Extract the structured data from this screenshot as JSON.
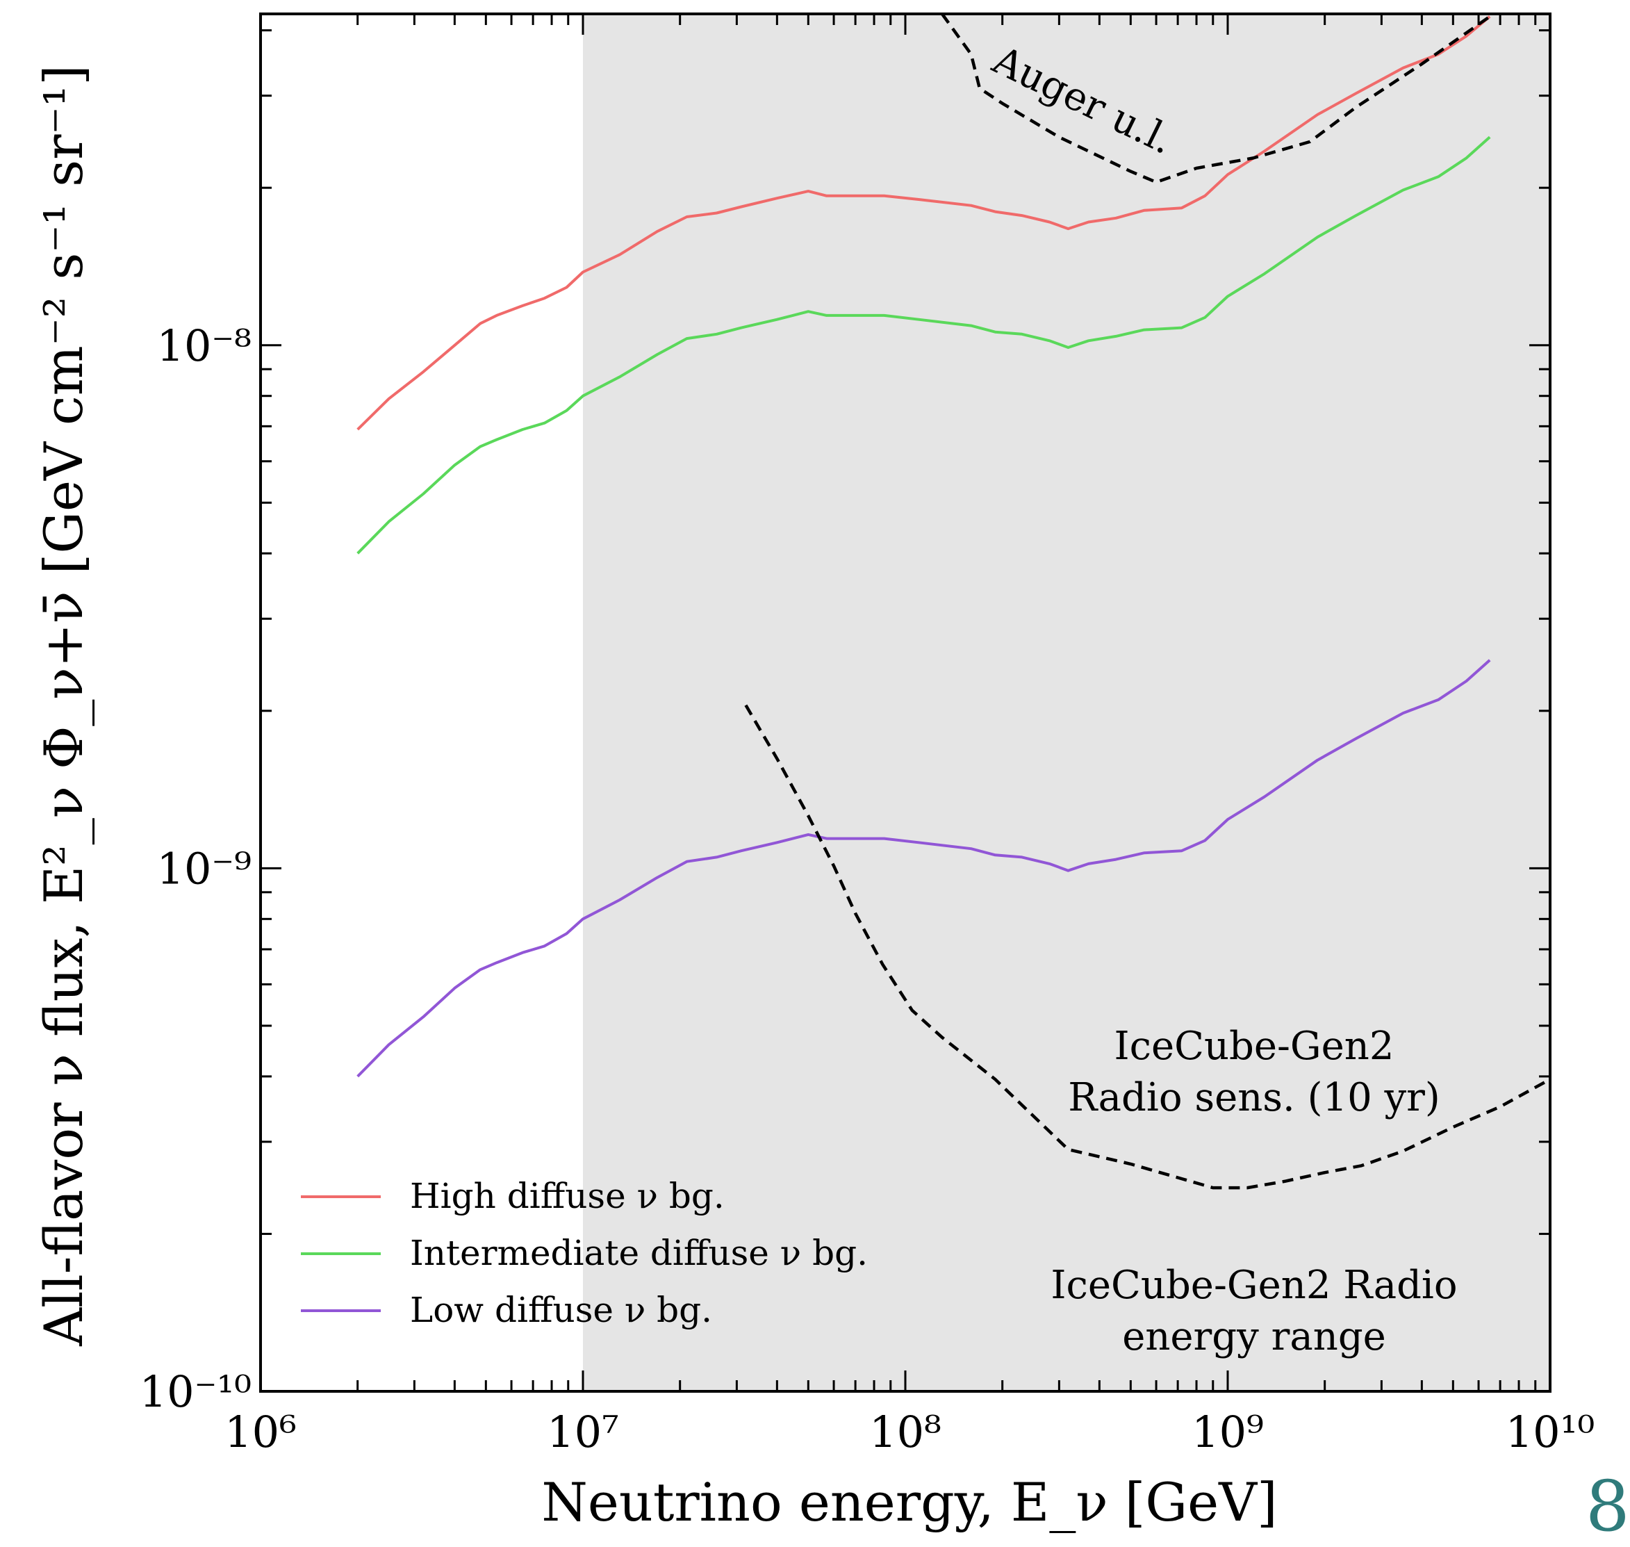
{
  "page_number": "8",
  "chart_data": {
    "type": "line",
    "xscale": "log",
    "yscale": "log",
    "xlim": [
      1000000.0,
      10000000000.0
    ],
    "ylim": [
      1e-10,
      4.3e-08
    ],
    "grid": false,
    "legend_position": "bottom-left",
    "xlabel": "Neutrino energy, E_ν [GeV]",
    "ylabel": "All-flavor ν flux, E²_ν Φ_ν+ν̄ [GeV cm⁻² s⁻¹ sr⁻¹]",
    "x_tick_labels": [
      "10⁶",
      "10⁷",
      "10⁸",
      "10⁹",
      "10¹⁰"
    ],
    "y_tick_labels": [
      "10⁻¹⁰",
      "10⁻⁹",
      "10⁻⁸"
    ],
    "shaded_region": {
      "x": [
        10000000.0,
        10000000000.0
      ],
      "color": "#e5e5e5",
      "label_line1": "IceCube-Gen2 Radio",
      "label_line2": "energy range"
    },
    "series": [
      {
        "name": "High diffuse ν bg.",
        "color": "#f06a6a",
        "style": "solid",
        "x": [
          2000000.0,
          2500000.0,
          3200000.0,
          4000000.0,
          4800000.0,
          5400000.0,
          6500000.0,
          7600000.0,
          8900000.0,
          10000000.0,
          13000000.0,
          17000000.0,
          21000000.0,
          26000000.0,
          31000000.0,
          40000000.0,
          50000000.0,
          57000000.0,
          67000000.0,
          86000000.0,
          110000000.0,
          160000000.0,
          190000000.0,
          230000000.0,
          280000000.0,
          320000000.0,
          370000000.0,
          450000000.0,
          550000000.0,
          720000000.0,
          850000000.0,
          1000000000.0,
          1300000000.0,
          1900000000.0,
          2500000000.0,
          3500000000.0,
          4500000000.0,
          5500000000.0,
          6500000000.0
        ],
        "y": [
          6.9e-09,
          7.9e-09,
          8.9e-09,
          1e-08,
          1.1e-08,
          1.14e-08,
          1.19e-08,
          1.23e-08,
          1.29e-08,
          1.38e-08,
          1.49e-08,
          1.65e-08,
          1.76e-08,
          1.79e-08,
          1.84e-08,
          1.91e-08,
          1.97e-08,
          1.93e-08,
          1.93e-08,
          1.93e-08,
          1.9e-08,
          1.85e-08,
          1.8e-08,
          1.77e-08,
          1.72e-08,
          1.67e-08,
          1.72e-08,
          1.75e-08,
          1.81e-08,
          1.83e-08,
          1.93e-08,
          2.12e-08,
          2.35e-08,
          2.76e-08,
          3.03e-08,
          3.39e-08,
          3.6e-08,
          3.9e-08,
          4.25e-08
        ]
      },
      {
        "name": "Intermediate diffuse ν bg.",
        "color": "#5ad85a",
        "style": "solid",
        "x": [
          2000000.0,
          2500000.0,
          3200000.0,
          4000000.0,
          4800000.0,
          5400000.0,
          6500000.0,
          7600000.0,
          8900000.0,
          10000000.0,
          13000000.0,
          17000000.0,
          21000000.0,
          26000000.0,
          31000000.0,
          40000000.0,
          50000000.0,
          57000000.0,
          67000000.0,
          86000000.0,
          110000000.0,
          160000000.0,
          190000000.0,
          230000000.0,
          280000000.0,
          320000000.0,
          370000000.0,
          450000000.0,
          550000000.0,
          720000000.0,
          850000000.0,
          1000000000.0,
          1300000000.0,
          1900000000.0,
          2500000000.0,
          3500000000.0,
          4500000000.0,
          5500000000.0,
          6500000000.0
        ],
        "y": [
          4e-09,
          4.6e-09,
          5.2e-09,
          5.9e-09,
          6.4e-09,
          6.6e-09,
          6.9e-09,
          7.1e-09,
          7.5e-09,
          8e-09,
          8.7e-09,
          9.6e-09,
          1.03e-08,
          1.05e-08,
          1.08e-08,
          1.12e-08,
          1.16e-08,
          1.14e-08,
          1.14e-08,
          1.14e-08,
          1.12e-08,
          1.09e-08,
          1.06e-08,
          1.05e-08,
          1.02e-08,
          9.9e-09,
          1.02e-08,
          1.04e-08,
          1.07e-08,
          1.08e-08,
          1.13e-08,
          1.24e-08,
          1.37e-08,
          1.61e-08,
          1.77e-08,
          1.98e-08,
          2.1e-08,
          2.28e-08,
          2.5e-08
        ]
      },
      {
        "name": "Low diffuse ν bg.",
        "color": "#9156d6",
        "style": "solid",
        "x": [
          2000000.0,
          2500000.0,
          3200000.0,
          4000000.0,
          4800000.0,
          5400000.0,
          6500000.0,
          7600000.0,
          8900000.0,
          10000000.0,
          13000000.0,
          17000000.0,
          21000000.0,
          26000000.0,
          31000000.0,
          40000000.0,
          50000000.0,
          57000000.0,
          67000000.0,
          86000000.0,
          110000000.0,
          160000000.0,
          190000000.0,
          230000000.0,
          280000000.0,
          320000000.0,
          370000000.0,
          450000000.0,
          550000000.0,
          720000000.0,
          850000000.0,
          1000000000.0,
          1300000000.0,
          1900000000.0,
          2500000000.0,
          3500000000.0,
          4500000000.0,
          5500000000.0,
          6500000000.0
        ],
        "y": [
          4e-10,
          4.6e-10,
          5.2e-10,
          5.9e-10,
          6.4e-10,
          6.6e-10,
          6.9e-10,
          7.1e-10,
          7.5e-10,
          8e-10,
          8.7e-10,
          9.6e-10,
          1.03e-09,
          1.05e-09,
          1.08e-09,
          1.12e-09,
          1.16e-09,
          1.14e-09,
          1.14e-09,
          1.14e-09,
          1.12e-09,
          1.09e-09,
          1.06e-09,
          1.05e-09,
          1.02e-09,
          9.9e-10,
          1.02e-09,
          1.04e-09,
          1.07e-09,
          1.08e-09,
          1.13e-09,
          1.24e-09,
          1.37e-09,
          1.61e-09,
          1.77e-09,
          1.98e-09,
          2.1e-09,
          2.28e-09,
          2.5e-09
        ]
      },
      {
        "name": "Auger u.l.",
        "color": "#000000",
        "style": "dashed",
        "x": [
          130000000.0,
          160000000.0,
          170000000.0,
          200000000.0,
          300000000.0,
          500000000.0,
          600000000.0,
          800000000.0,
          1200000000.0,
          1800000000.0,
          2500000000.0,
          4000000000.0,
          6500000000.0
        ],
        "y": [
          4.3e-08,
          3.6e-08,
          3.1e-08,
          2.9e-08,
          2.5e-08,
          2.15e-08,
          2.05e-08,
          2.18e-08,
          2.28e-08,
          2.45e-08,
          2.85e-08,
          3.45e-08,
          4.25e-08
        ]
      },
      {
        "name": "IceCube-Gen2 Radio sens. (10 yr)",
        "color": "#000000",
        "style": "dashed",
        "x": [
          32000000.0,
          40000000.0,
          50000000.0,
          60000000.0,
          70000000.0,
          85000000.0,
          105000000.0,
          130000000.0,
          190000000.0,
          320000000.0,
          500000000.0,
          900000000.0,
          1150000000.0,
          1500000000.0,
          2000000000.0,
          2600000000.0,
          3500000000.0,
          5000000000.0,
          7000000000.0,
          10000000000.0
        ],
        "y": [
          2.05e-09,
          1.62e-09,
          1.26e-09,
          1.01e-09,
          8.2e-10,
          6.55e-10,
          5.35e-10,
          4.75e-10,
          3.95e-10,
          2.9e-10,
          2.72e-10,
          2.45e-10,
          2.45e-10,
          2.52e-10,
          2.62e-10,
          2.7e-10,
          2.88e-10,
          3.2e-10,
          3.5e-10,
          3.95e-10
        ]
      }
    ],
    "legend": [
      "High diffuse ν bg.",
      "Intermediate diffuse ν bg.",
      "Low diffuse ν bg."
    ],
    "annotations": {
      "auger": "Auger u.l.",
      "gen2_line1": "IceCube-Gen2",
      "gen2_line2": "Radio sens. (10 yr)"
    }
  }
}
